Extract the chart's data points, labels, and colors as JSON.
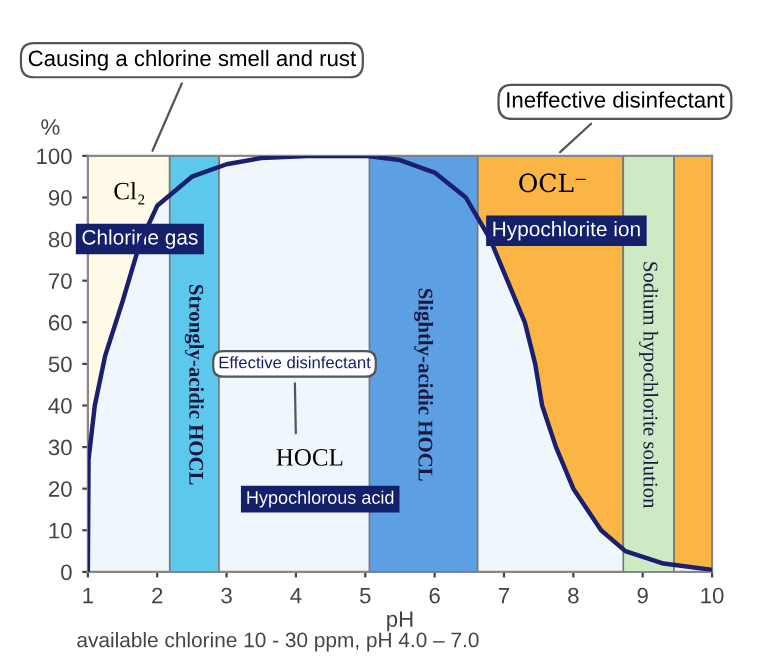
{
  "chart_data": {
    "type": "line",
    "xlabel": "pH",
    "ylabel": "%",
    "x": [
      1.0,
      1.01,
      1.1,
      1.25,
      1.5,
      1.75,
      2.0,
      2.5,
      3.0,
      3.5,
      4.25,
      5.0,
      5.5,
      6.0,
      6.45,
      6.8,
      7.05,
      7.3,
      7.45,
      7.55,
      7.75,
      8.0,
      8.4,
      8.75,
      9.3,
      10.0
    ],
    "series": [
      {
        "color": "#1a1f6e",
        "values": [
          0,
          27,
          40,
          52,
          65,
          79,
          88,
          95,
          98,
          99.5,
          100,
          100,
          99,
          96,
          90,
          80,
          70,
          60,
          50,
          40,
          30,
          20,
          10,
          5,
          2,
          0.5
        ]
      }
    ],
    "xlim": [
      1,
      10
    ],
    "xticks": [
      1,
      2,
      3,
      4,
      5,
      6,
      7,
      8,
      9,
      10
    ],
    "ylim": [
      0,
      100
    ],
    "yticks": [
      0,
      10,
      20,
      30,
      40,
      50,
      60,
      70,
      80,
      90,
      100
    ],
    "bands": [
      {
        "axis": "x",
        "from": 1,
        "to": 2.18,
        "color": "#fffbe8"
      },
      {
        "axis": "x",
        "from": 2.18,
        "to": 2.89,
        "color": "#5bc8ec",
        "label": "Strongly-acidic HOCL"
      },
      {
        "axis": "x",
        "from": 2.89,
        "to": 5.06,
        "color": "#f4fafd"
      },
      {
        "axis": "x",
        "from": 5.06,
        "to": 6.62,
        "color": "#5c9fe2",
        "label": "Slightly-acidic HOCL"
      },
      {
        "axis": "x",
        "from": 6.62,
        "to": 8.72,
        "color": "#fbb545"
      },
      {
        "axis": "x",
        "from": 8.72,
        "to": 9.45,
        "color": "#cdeac4",
        "label": "Sodium hypochlorite solution"
      },
      {
        "axis": "x",
        "from": 9.45,
        "to": 10,
        "color": "#fbb545"
      }
    ],
    "annotations": [
      "Causing a chlorine smell and rust",
      "Ineffective disinfectant",
      "Effective disinfectant",
      "Cl₂",
      "OCL⁻",
      "HOCL",
      "Chlorine gas",
      "Hypochlorite ion",
      "Hypochlorous acid",
      "available chlorine 10 - 30 ppm, pH 4.0 – 7.0"
    ],
    "legend": false,
    "grid": false
  }
}
